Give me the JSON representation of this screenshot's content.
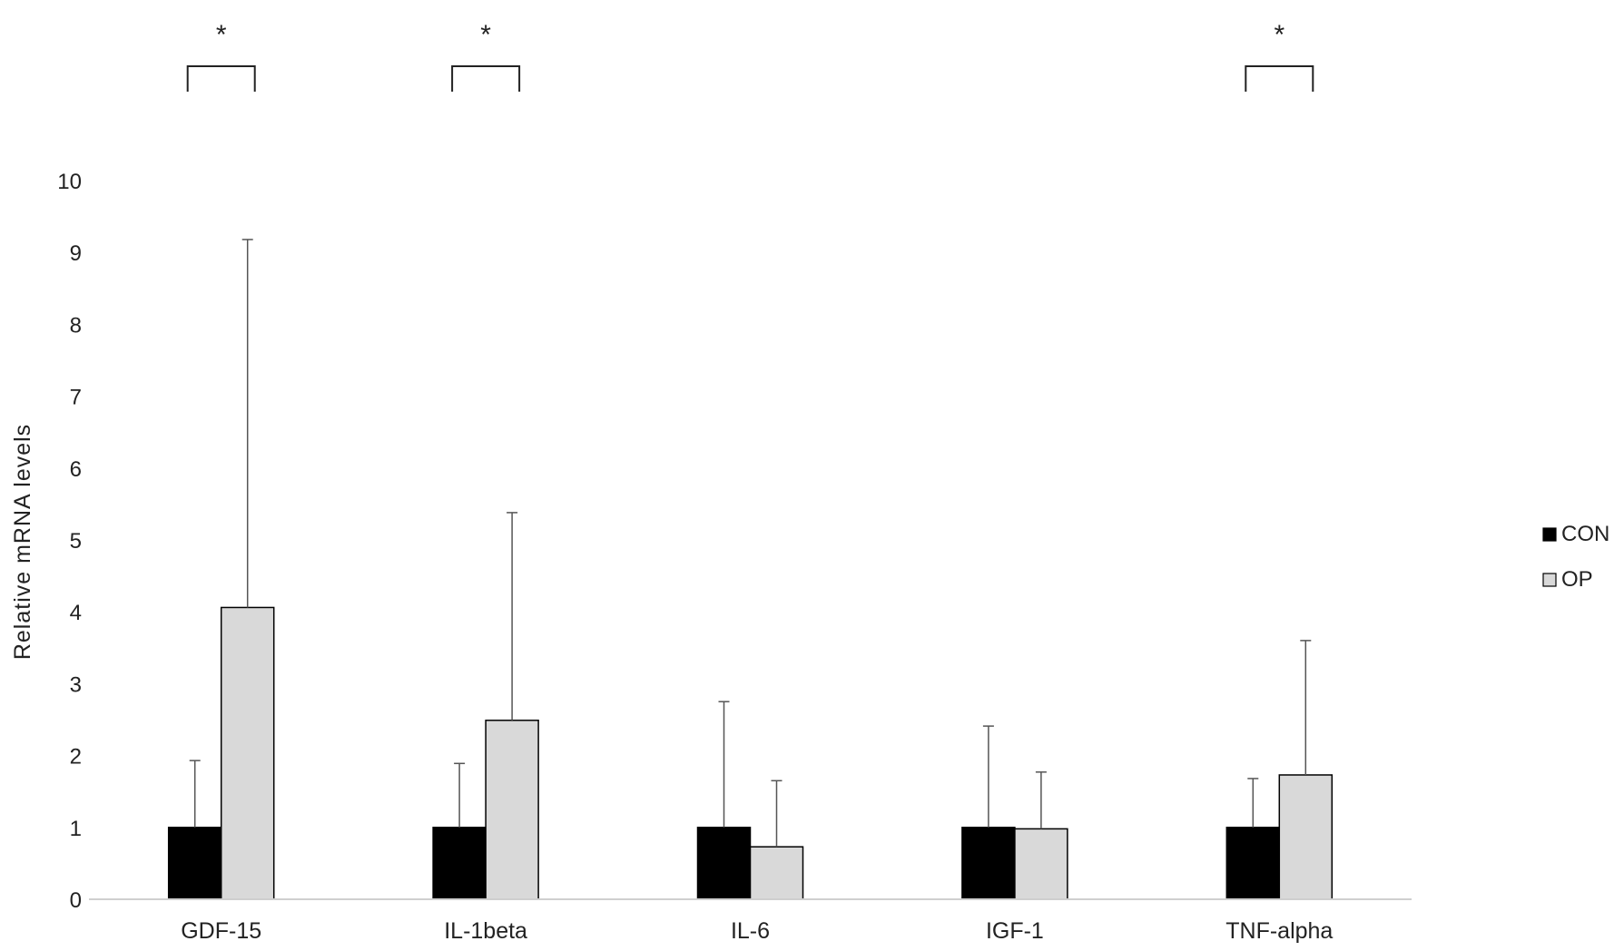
{
  "chart_data": {
    "type": "bar",
    "title": "",
    "xlabel": "",
    "ylabel": "Relative  mRNA  levels",
    "ylim": [
      0,
      10
    ],
    "yticks": [
      "0",
      "1",
      "2",
      "3",
      "4",
      "5",
      "6",
      "7",
      "8",
      "9",
      "10"
    ],
    "grid": false,
    "legend_position": "right",
    "categories": [
      "GDF-15",
      "IL-1beta",
      "IL-6",
      "IGF-1",
      "TNF-alpha"
    ],
    "series": [
      {
        "name": "CON",
        "color": "#000000",
        "values": [
          1.0,
          1.0,
          1.0,
          1.0,
          1.0
        ],
        "error_upper": [
          1.93,
          1.89,
          2.75,
          2.41,
          1.68
        ]
      },
      {
        "name": "OP",
        "color": "#d9d9d9",
        "values": [
          4.06,
          2.49,
          0.73,
          0.98,
          1.73
        ],
        "error_upper": [
          9.18,
          5.38,
          1.65,
          1.77,
          3.6
        ]
      }
    ],
    "significance": [
      {
        "category": "GDF-15",
        "label": "*"
      },
      {
        "category": "IL-1beta",
        "label": "*"
      },
      {
        "category": "TNF-alpha",
        "label": "*"
      }
    ]
  }
}
